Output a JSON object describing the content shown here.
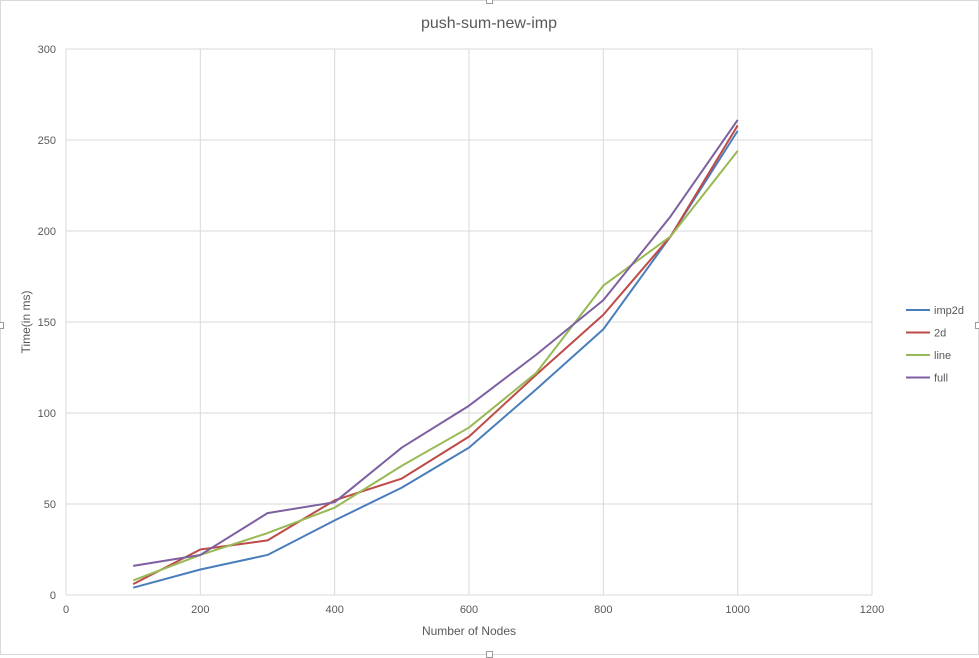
{
  "chart_data": {
    "type": "line",
    "title": "push-sum-new-imp",
    "xlabel": "Number of Nodes",
    "ylabel": "Time(in ms)",
    "xlim": [
      0,
      1200
    ],
    "ylim": [
      0,
      300
    ],
    "x_ticks": [
      0,
      200,
      400,
      600,
      800,
      1000,
      1200
    ],
    "y_ticks": [
      0,
      50,
      100,
      150,
      200,
      250,
      300
    ],
    "grid": true,
    "legend_position": "right",
    "x": [
      100,
      200,
      300,
      400,
      500,
      600,
      700,
      800,
      900,
      1000
    ],
    "series": [
      {
        "name": "imp2d",
        "color": "#4a7ebb",
        "values": [
          4,
          14,
          22,
          41,
          59,
          81,
          113,
          146,
          197,
          255
        ]
      },
      {
        "name": "2d",
        "color": "#be4b48",
        "values": [
          6,
          25,
          30,
          52,
          64,
          87,
          121,
          154,
          197,
          258
        ]
      },
      {
        "name": "line",
        "color": "#98b954",
        "values": [
          8,
          22,
          34,
          48,
          71,
          92,
          122,
          170,
          197,
          244
        ]
      },
      {
        "name": "full",
        "color": "#7d60a0",
        "values": [
          16,
          22,
          45,
          51,
          81,
          104,
          132,
          162,
          208,
          261
        ]
      }
    ]
  }
}
